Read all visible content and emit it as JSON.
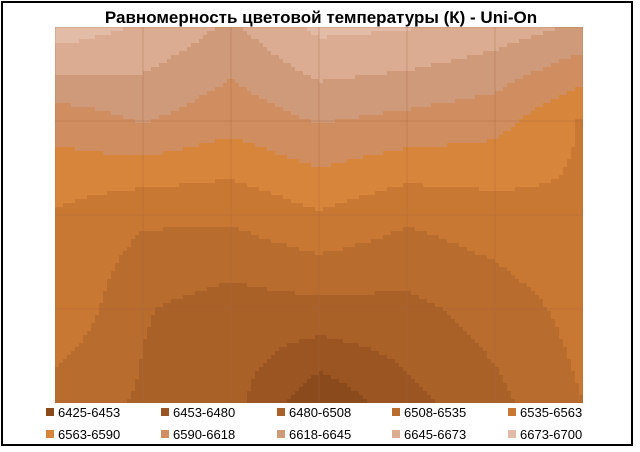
{
  "chart_data": {
    "type": "heatmap",
    "subtype": "filled-contour",
    "title": "Равномерность  цветовой температуры (К) - Uni-On",
    "xlabel": "",
    "ylabel": "",
    "grid": true,
    "legend_position": "bottom",
    "grid_rows": 5,
    "grid_cols": 7,
    "values": [
      [
        6690,
        6670,
        6640,
        6680,
        6675,
        6660,
        6640
      ],
      [
        6600,
        6620,
        6600,
        6620,
        6610,
        6600,
        6560
      ],
      [
        6560,
        6540,
        6540,
        6560,
        6540,
        6550,
        6560
      ],
      [
        6560,
        6510,
        6495,
        6500,
        6500,
        6520,
        6545
      ],
      [
        6520,
        6505,
        6490,
        6430,
        6470,
        6500,
        6535
      ]
    ],
    "legend": [
      {
        "label": "6425-6453",
        "color": "#8a4a1c"
      },
      {
        "label": "6453-6480",
        "color": "#9a5522"
      },
      {
        "label": "6480-6508",
        "color": "#a96128"
      },
      {
        "label": "6508-6535",
        "color": "#b86c2e"
      },
      {
        "label": "6535-6563",
        "color": "#c97834"
      },
      {
        "label": "6563-6590",
        "color": "#d8853c"
      },
      {
        "label": "6590-6618",
        "color": "#d08d60"
      },
      {
        "label": "6618-6645",
        "color": "#cf9a7a"
      },
      {
        "label": "6645-6673",
        "color": "#dbac92"
      },
      {
        "label": "6673-6700",
        "color": "#e3bca8"
      }
    ],
    "bands": [
      6425,
      6453,
      6480,
      6508,
      6535,
      6563,
      6590,
      6618,
      6645,
      6673,
      6700
    ]
  }
}
